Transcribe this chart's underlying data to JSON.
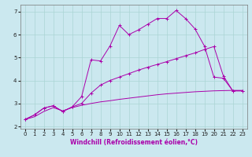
{
  "xlabel": "Windchill (Refroidissement éolien,°C)",
  "bg_color": "#cbe8ef",
  "grid_color": "#aad4d4",
  "line_color": "#aa00aa",
  "ylim": [
    1.9,
    7.3
  ],
  "xlim": [
    -0.5,
    23.5
  ],
  "yticks": [
    2,
    3,
    4,
    5,
    6,
    7
  ],
  "xticks": [
    0,
    1,
    2,
    3,
    4,
    5,
    6,
    7,
    8,
    9,
    10,
    11,
    12,
    13,
    14,
    15,
    16,
    17,
    18,
    19,
    20,
    21,
    22,
    23
  ],
  "line1_y": [
    2.3,
    2.5,
    2.8,
    2.9,
    2.65,
    2.85,
    3.3,
    4.9,
    4.85,
    5.5,
    6.4,
    6.0,
    6.2,
    6.45,
    6.7,
    6.7,
    7.05,
    6.7,
    6.25,
    5.5,
    4.15,
    4.1,
    3.55,
    3.55
  ],
  "line2_y": [
    2.3,
    2.5,
    2.8,
    2.9,
    2.65,
    2.85,
    3.0,
    3.45,
    3.8,
    4.0,
    4.15,
    4.3,
    4.45,
    4.58,
    4.7,
    4.82,
    4.95,
    5.08,
    5.2,
    5.35,
    5.48,
    4.2,
    3.55,
    3.55
  ],
  "line3_y": [
    2.3,
    2.42,
    2.65,
    2.82,
    2.68,
    2.82,
    2.92,
    3.0,
    3.07,
    3.12,
    3.18,
    3.23,
    3.28,
    3.33,
    3.38,
    3.42,
    3.45,
    3.48,
    3.51,
    3.53,
    3.55,
    3.56,
    3.57,
    3.57
  ],
  "line1_has_markers": true,
  "line2_has_markers": true,
  "line3_has_markers": false,
  "xlabel_fontsize": 5.5,
  "tick_fontsize": 5.0
}
